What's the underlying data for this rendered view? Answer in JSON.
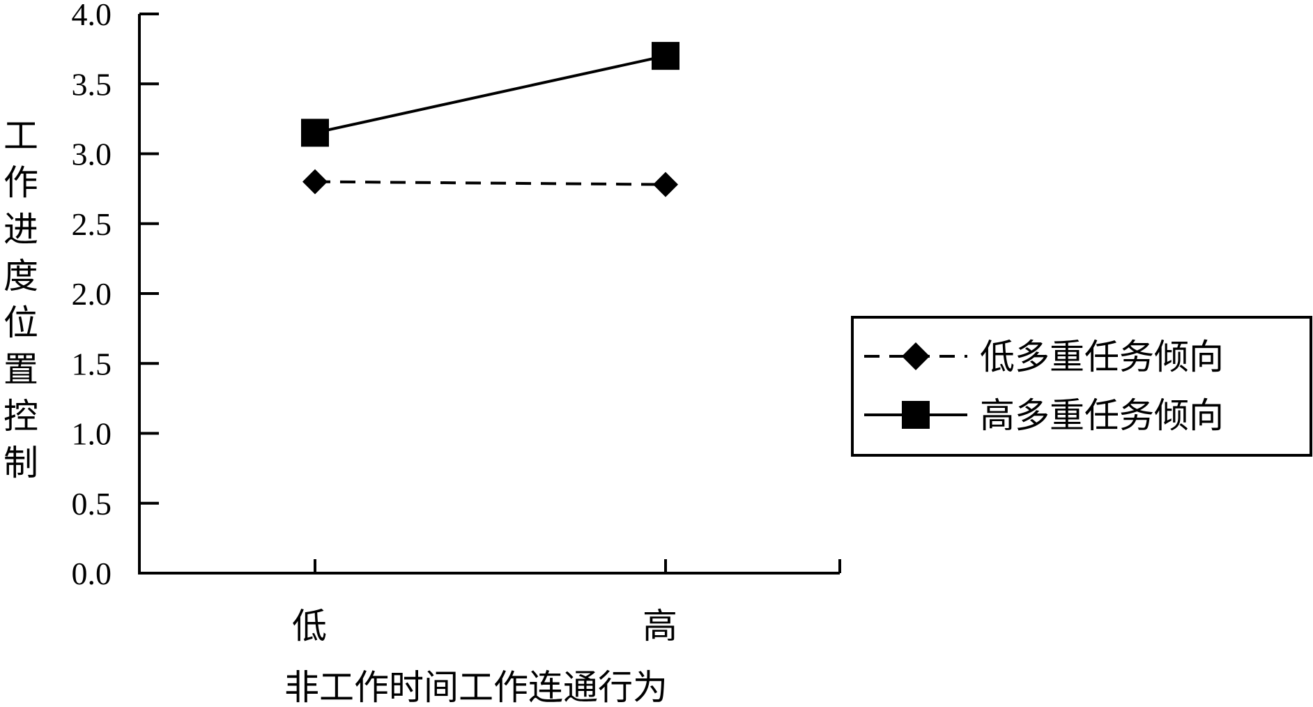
{
  "chart_data": {
    "type": "line",
    "title": "",
    "xlabel": "非工作时间工作连通行为",
    "ylabel": "工作进度位置控制",
    "categories": [
      "低",
      "高"
    ],
    "series": [
      {
        "name": "低多重任务倾向",
        "values": [
          2.8,
          2.78
        ],
        "line_style": "dashed",
        "marker": "diamond",
        "color": "#000000"
      },
      {
        "name": "高多重任务倾向",
        "values": [
          3.15,
          3.7
        ],
        "line_style": "solid",
        "marker": "square",
        "color": "#000000"
      }
    ],
    "ylim": [
      0.0,
      4.0
    ],
    "yticks": [
      "0.0",
      "0.5",
      "1.0",
      "1.5",
      "2.0",
      "2.5",
      "3.0",
      "3.5",
      "4.0"
    ],
    "grid": false,
    "legend_position": "right"
  }
}
